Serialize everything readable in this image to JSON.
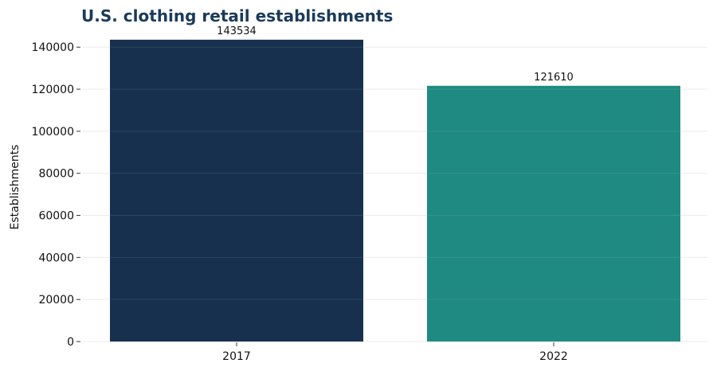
{
  "chart_data": {
    "type": "bar",
    "title": "U.S. clothing retail establishments",
    "xlabel": "",
    "ylabel": "Establishments",
    "categories": [
      "2017",
      "2022"
    ],
    "values": [
      143534,
      121610
    ],
    "data_labels": [
      "143534",
      "121610"
    ],
    "bar_colors": [
      "#17304d",
      "#1f8a82"
    ],
    "ylim": [
      0,
      145000
    ],
    "yticks": [
      0,
      20000,
      40000,
      60000,
      80000,
      100000,
      120000,
      140000
    ],
    "ytick_labels": [
      "0",
      "20000",
      "40000",
      "60000",
      "80000",
      "100000",
      "120000",
      "140000"
    ],
    "grid": true,
    "legend": "none"
  }
}
